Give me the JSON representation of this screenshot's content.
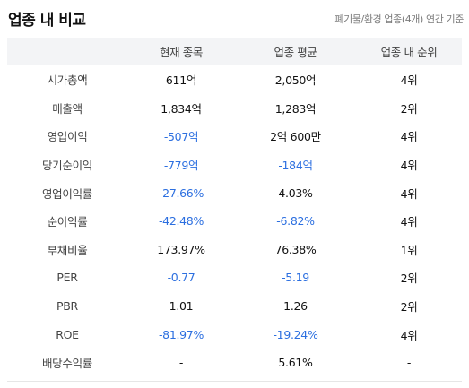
{
  "header": {
    "title": "업종 내 비교",
    "subtitle": "폐기물/환경 업종(4개) 연간 기준"
  },
  "table": {
    "columns": [
      "",
      "현재 종목",
      "업종 평균",
      "업종 내 순위"
    ],
    "rows": [
      {
        "label": "시가총액",
        "current": "611억",
        "avg": "2,050억",
        "rank": "4위",
        "current_negative": false,
        "avg_negative": false
      },
      {
        "label": "매출액",
        "current": "1,834억",
        "avg": "1,283억",
        "rank": "2위",
        "current_negative": false,
        "avg_negative": false
      },
      {
        "label": "영업이익",
        "current": "-507억",
        "avg": "2억 600만",
        "rank": "4위",
        "current_negative": true,
        "avg_negative": false
      },
      {
        "label": "당기순이익",
        "current": "-779억",
        "avg": "-184억",
        "rank": "4위",
        "current_negative": true,
        "avg_negative": true
      },
      {
        "label": "영업이익률",
        "current": "-27.66%",
        "avg": "4.03%",
        "rank": "4위",
        "current_negative": true,
        "avg_negative": false
      },
      {
        "label": "순이익률",
        "current": "-42.48%",
        "avg": "-6.82%",
        "rank": "4위",
        "current_negative": true,
        "avg_negative": true
      },
      {
        "label": "부채비율",
        "current": "173.97%",
        "avg": "76.38%",
        "rank": "1위",
        "current_negative": false,
        "avg_negative": false
      },
      {
        "label": "PER",
        "current": "-0.77",
        "avg": "-5.19",
        "rank": "2위",
        "current_negative": true,
        "avg_negative": true
      },
      {
        "label": "PBR",
        "current": "1.01",
        "avg": "1.26",
        "rank": "2위",
        "current_negative": false,
        "avg_negative": false
      },
      {
        "label": "ROE",
        "current": "-81.97%",
        "avg": "-19.24%",
        "rank": "4위",
        "current_negative": true,
        "avg_negative": true
      },
      {
        "label": "배당수익률",
        "current": "-",
        "avg": "5.61%",
        "rank": "-",
        "current_negative": false,
        "avg_negative": false
      }
    ]
  },
  "colors": {
    "negative": "#2c6fe0",
    "header_bg": "#f3f4f6"
  }
}
